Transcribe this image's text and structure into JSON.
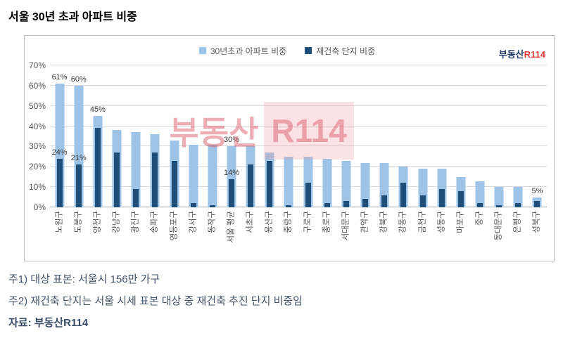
{
  "title": "서울 30년 초과 아파트 비중",
  "logo": {
    "prefix": "부동산",
    "suffix": "R114"
  },
  "watermark": {
    "text_left": "부동산",
    "text_right": "R114"
  },
  "notes": [
    "주1) 대상 표본: 서울시 156만 가구",
    "주2) 재건축 단지는 서울 시세 표본 대상 중 재건축 추진 단지 비중임"
  ],
  "source": "자료: 부동산R114",
  "colors": {
    "light_blue": "#9dc3e6",
    "dark_blue": "#1f4e79",
    "gridline": "#d9d9d9",
    "frame_border": "#bfbfbf",
    "watermark_pink": "#de5d6e",
    "logo_red": "#e8403a",
    "logo_navy": "#1f3864"
  },
  "chart_data": {
    "type": "bar",
    "bar_style": "overlapped",
    "title": "서울 30년 초과 아파트 비중",
    "categories": [
      "노원구",
      "도봉구",
      "양천구",
      "강남구",
      "광진구",
      "송파구",
      "영등포구",
      "강서구",
      "동작구",
      "서울 평균",
      "서초구",
      "용산구",
      "중랑구",
      "구로구",
      "종로구",
      "서대문구",
      "관악구",
      "강북구",
      "강동구",
      "금천구",
      "성동구",
      "마포구",
      "중구",
      "동대문구",
      "은평구",
      "성북구"
    ],
    "series": [
      {
        "name": "30년초과 아파트 비중",
        "color": "#9dc3e6",
        "values": [
          61,
          60,
          45,
          38,
          37,
          36,
          33,
          31,
          31,
          30,
          30,
          27,
          25,
          25,
          24,
          23,
          22,
          22,
          20,
          19,
          19,
          15,
          13,
          10,
          10,
          5
        ]
      },
      {
        "name": "재건축 단지 비중",
        "color": "#1f4e79",
        "values": [
          24,
          21,
          39,
          27,
          9,
          27,
          23,
          2,
          1,
          14,
          21,
          23,
          1,
          12,
          2,
          3,
          4,
          6,
          12,
          6,
          9,
          8,
          2,
          1,
          2,
          3
        ]
      }
    ],
    "xlabel": "",
    "ylabel": "",
    "ylim": [
      0,
      70
    ],
    "ytick_step": 10,
    "ytick_labels": [
      "0%",
      "10%",
      "20%",
      "30%",
      "40%",
      "50%",
      "60%",
      "70%"
    ],
    "grid": true,
    "legend_position": "top-center",
    "value_labels": [
      {
        "category": "노원구",
        "series": 0,
        "text": "61%"
      },
      {
        "category": "노원구",
        "series": 1,
        "text": "24%"
      },
      {
        "category": "도봉구",
        "series": 0,
        "text": "60%"
      },
      {
        "category": "도봉구",
        "series": 1,
        "text": "21%"
      },
      {
        "category": "양천구",
        "series": 0,
        "text": "45%"
      },
      {
        "category": "서울 평균",
        "series": 0,
        "text": "30%"
      },
      {
        "category": "서울 평균",
        "series": 1,
        "text": "14%"
      },
      {
        "category": "성북구",
        "series": 0,
        "text": "5%"
      }
    ]
  }
}
